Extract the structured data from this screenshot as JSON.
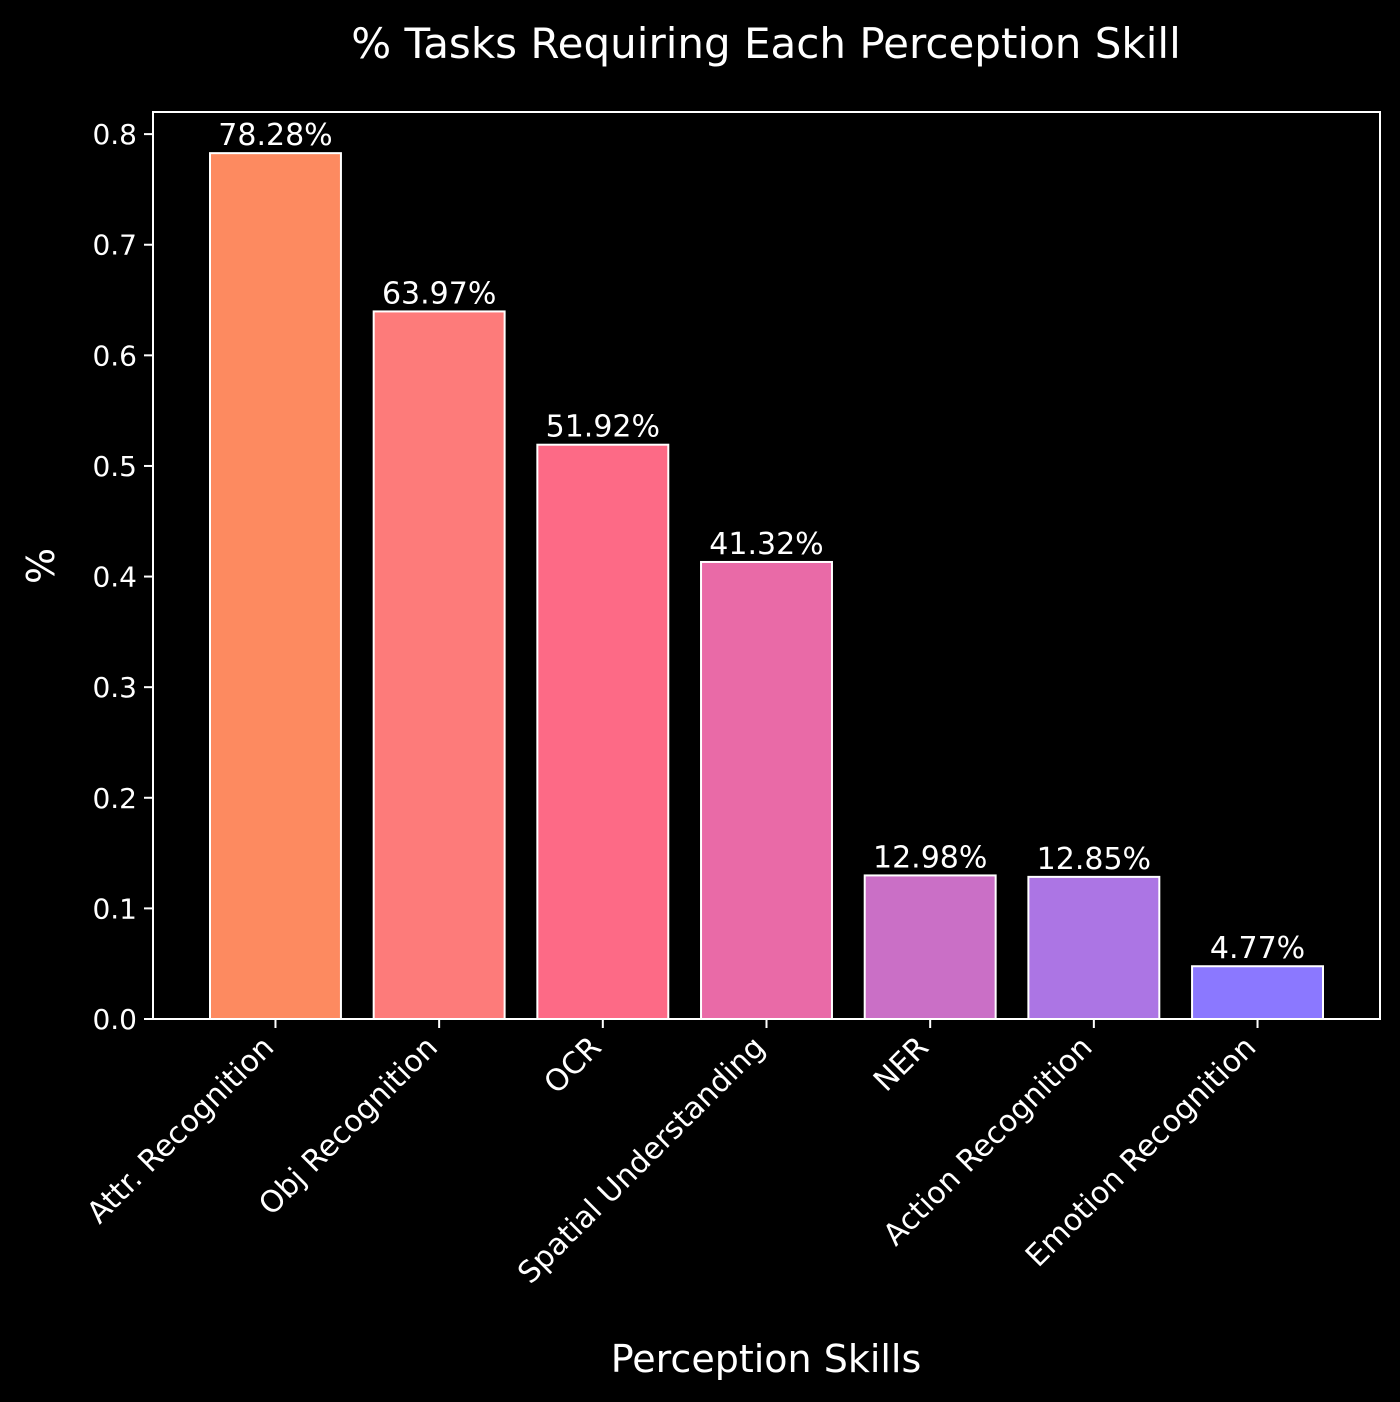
{
  "chart_data": {
    "type": "bar",
    "title": "% Tasks Requiring Each Perception Skill",
    "xlabel": "Perception Skills",
    "ylabel": "%",
    "ylim": [
      0,
      0.82
    ],
    "yticks": [
      0.0,
      0.1,
      0.2,
      0.3,
      0.4,
      0.5,
      0.6,
      0.7,
      0.8
    ],
    "ytick_labels": [
      "0.0",
      "0.1",
      "0.2",
      "0.3",
      "0.4",
      "0.5",
      "0.6",
      "0.7",
      "0.8"
    ],
    "grid": false,
    "categories": [
      "Attr. Recognition",
      "Obj Recognition",
      "OCR",
      "Spatial Understanding",
      "NER",
      "Action Recognition",
      "Emotion Recognition"
    ],
    "values": [
      0.7828,
      0.6397,
      0.5192,
      0.4132,
      0.1298,
      0.1285,
      0.0477
    ],
    "value_labels": [
      "78.28%",
      "63.97%",
      "51.92%",
      "41.32%",
      "12.98%",
      "12.85%",
      "4.77%"
    ],
    "colors": [
      "#fd8a60",
      "#fd7b7a",
      "#fd6a86",
      "#e96aa7",
      "#ca6fc6",
      "#ac75e4",
      "#8b78ff"
    ],
    "edge_color": "#ffffff",
    "background": "#000000",
    "text_color": "#ffffff"
  }
}
